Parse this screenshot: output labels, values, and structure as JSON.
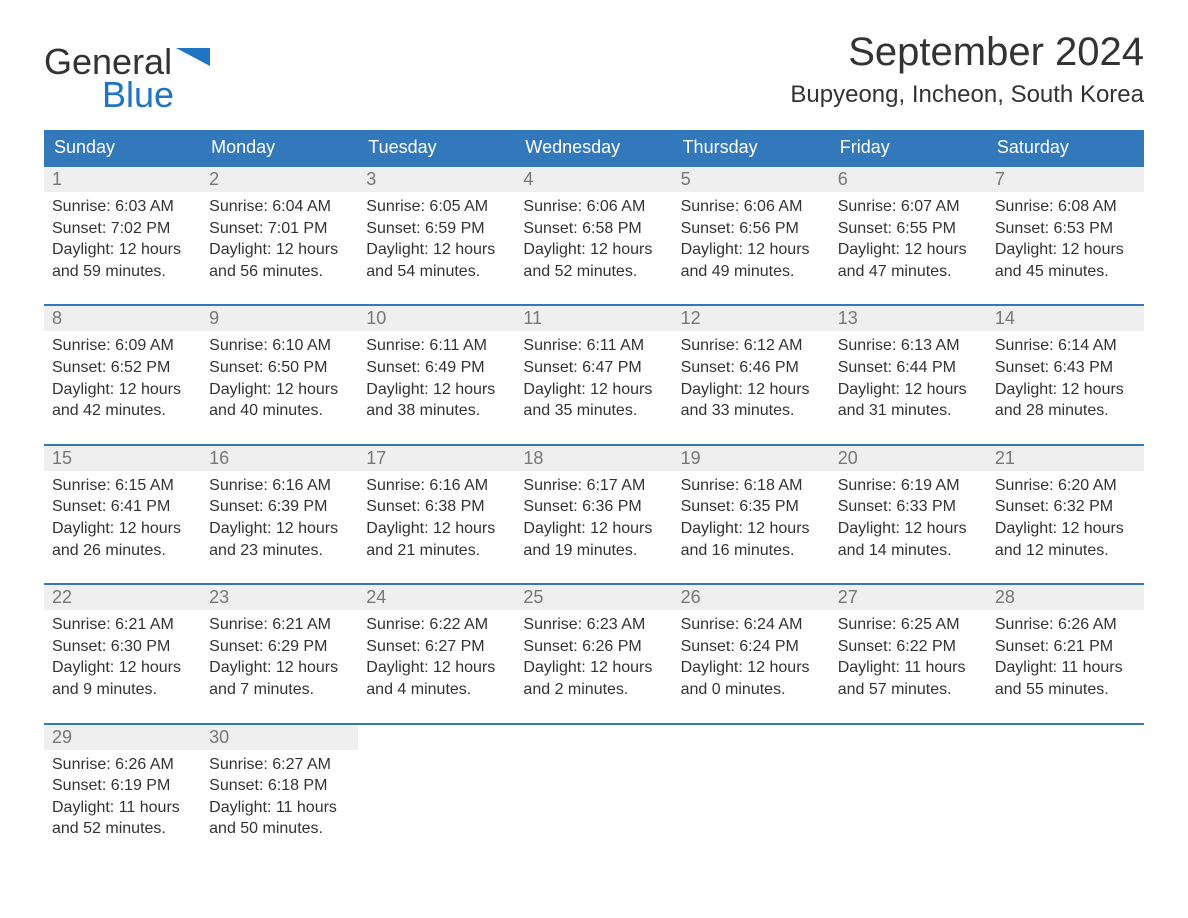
{
  "logo": {
    "word1": "General",
    "word2": "Blue"
  },
  "title": "September 2024",
  "location": "Bupyeong, Incheon, South Korea",
  "colors": {
    "header_bg": "#3478bc",
    "header_text": "#ffffff",
    "daynum_bg": "#efefef",
    "daynum_text": "#777777",
    "body_text": "#333333",
    "logo_blue": "#1f74c4",
    "week_border": "#3478bc",
    "page_bg": "#ffffff"
  },
  "typography": {
    "title_fontsize": 40,
    "location_fontsize": 24,
    "dow_fontsize": 18,
    "daynum_fontsize": 18,
    "body_fontsize": 16,
    "logo_fontsize": 36
  },
  "days_of_week": [
    "Sunday",
    "Monday",
    "Tuesday",
    "Wednesday",
    "Thursday",
    "Friday",
    "Saturday"
  ],
  "weeks": [
    [
      {
        "n": "1",
        "sr": "Sunrise: 6:03 AM",
        "ss": "Sunset: 7:02 PM",
        "d1": "Daylight: 12 hours",
        "d2": "and 59 minutes."
      },
      {
        "n": "2",
        "sr": "Sunrise: 6:04 AM",
        "ss": "Sunset: 7:01 PM",
        "d1": "Daylight: 12 hours",
        "d2": "and 56 minutes."
      },
      {
        "n": "3",
        "sr": "Sunrise: 6:05 AM",
        "ss": "Sunset: 6:59 PM",
        "d1": "Daylight: 12 hours",
        "d2": "and 54 minutes."
      },
      {
        "n": "4",
        "sr": "Sunrise: 6:06 AM",
        "ss": "Sunset: 6:58 PM",
        "d1": "Daylight: 12 hours",
        "d2": "and 52 minutes."
      },
      {
        "n": "5",
        "sr": "Sunrise: 6:06 AM",
        "ss": "Sunset: 6:56 PM",
        "d1": "Daylight: 12 hours",
        "d2": "and 49 minutes."
      },
      {
        "n": "6",
        "sr": "Sunrise: 6:07 AM",
        "ss": "Sunset: 6:55 PM",
        "d1": "Daylight: 12 hours",
        "d2": "and 47 minutes."
      },
      {
        "n": "7",
        "sr": "Sunrise: 6:08 AM",
        "ss": "Sunset: 6:53 PM",
        "d1": "Daylight: 12 hours",
        "d2": "and 45 minutes."
      }
    ],
    [
      {
        "n": "8",
        "sr": "Sunrise: 6:09 AM",
        "ss": "Sunset: 6:52 PM",
        "d1": "Daylight: 12 hours",
        "d2": "and 42 minutes."
      },
      {
        "n": "9",
        "sr": "Sunrise: 6:10 AM",
        "ss": "Sunset: 6:50 PM",
        "d1": "Daylight: 12 hours",
        "d2": "and 40 minutes."
      },
      {
        "n": "10",
        "sr": "Sunrise: 6:11 AM",
        "ss": "Sunset: 6:49 PM",
        "d1": "Daylight: 12 hours",
        "d2": "and 38 minutes."
      },
      {
        "n": "11",
        "sr": "Sunrise: 6:11 AM",
        "ss": "Sunset: 6:47 PM",
        "d1": "Daylight: 12 hours",
        "d2": "and 35 minutes."
      },
      {
        "n": "12",
        "sr": "Sunrise: 6:12 AM",
        "ss": "Sunset: 6:46 PM",
        "d1": "Daylight: 12 hours",
        "d2": "and 33 minutes."
      },
      {
        "n": "13",
        "sr": "Sunrise: 6:13 AM",
        "ss": "Sunset: 6:44 PM",
        "d1": "Daylight: 12 hours",
        "d2": "and 31 minutes."
      },
      {
        "n": "14",
        "sr": "Sunrise: 6:14 AM",
        "ss": "Sunset: 6:43 PM",
        "d1": "Daylight: 12 hours",
        "d2": "and 28 minutes."
      }
    ],
    [
      {
        "n": "15",
        "sr": "Sunrise: 6:15 AM",
        "ss": "Sunset: 6:41 PM",
        "d1": "Daylight: 12 hours",
        "d2": "and 26 minutes."
      },
      {
        "n": "16",
        "sr": "Sunrise: 6:16 AM",
        "ss": "Sunset: 6:39 PM",
        "d1": "Daylight: 12 hours",
        "d2": "and 23 minutes."
      },
      {
        "n": "17",
        "sr": "Sunrise: 6:16 AM",
        "ss": "Sunset: 6:38 PM",
        "d1": "Daylight: 12 hours",
        "d2": "and 21 minutes."
      },
      {
        "n": "18",
        "sr": "Sunrise: 6:17 AM",
        "ss": "Sunset: 6:36 PM",
        "d1": "Daylight: 12 hours",
        "d2": "and 19 minutes."
      },
      {
        "n": "19",
        "sr": "Sunrise: 6:18 AM",
        "ss": "Sunset: 6:35 PM",
        "d1": "Daylight: 12 hours",
        "d2": "and 16 minutes."
      },
      {
        "n": "20",
        "sr": "Sunrise: 6:19 AM",
        "ss": "Sunset: 6:33 PM",
        "d1": "Daylight: 12 hours",
        "d2": "and 14 minutes."
      },
      {
        "n": "21",
        "sr": "Sunrise: 6:20 AM",
        "ss": "Sunset: 6:32 PM",
        "d1": "Daylight: 12 hours",
        "d2": "and 12 minutes."
      }
    ],
    [
      {
        "n": "22",
        "sr": "Sunrise: 6:21 AM",
        "ss": "Sunset: 6:30 PM",
        "d1": "Daylight: 12 hours",
        "d2": "and 9 minutes."
      },
      {
        "n": "23",
        "sr": "Sunrise: 6:21 AM",
        "ss": "Sunset: 6:29 PM",
        "d1": "Daylight: 12 hours",
        "d2": "and 7 minutes."
      },
      {
        "n": "24",
        "sr": "Sunrise: 6:22 AM",
        "ss": "Sunset: 6:27 PM",
        "d1": "Daylight: 12 hours",
        "d2": "and 4 minutes."
      },
      {
        "n": "25",
        "sr": "Sunrise: 6:23 AM",
        "ss": "Sunset: 6:26 PM",
        "d1": "Daylight: 12 hours",
        "d2": "and 2 minutes."
      },
      {
        "n": "26",
        "sr": "Sunrise: 6:24 AM",
        "ss": "Sunset: 6:24 PM",
        "d1": "Daylight: 12 hours",
        "d2": "and 0 minutes."
      },
      {
        "n": "27",
        "sr": "Sunrise: 6:25 AM",
        "ss": "Sunset: 6:22 PM",
        "d1": "Daylight: 11 hours",
        "d2": "and 57 minutes."
      },
      {
        "n": "28",
        "sr": "Sunrise: 6:26 AM",
        "ss": "Sunset: 6:21 PM",
        "d1": "Daylight: 11 hours",
        "d2": "and 55 minutes."
      }
    ],
    [
      {
        "n": "29",
        "sr": "Sunrise: 6:26 AM",
        "ss": "Sunset: 6:19 PM",
        "d1": "Daylight: 11 hours",
        "d2": "and 52 minutes."
      },
      {
        "n": "30",
        "sr": "Sunrise: 6:27 AM",
        "ss": "Sunset: 6:18 PM",
        "d1": "Daylight: 11 hours",
        "d2": "and 50 minutes."
      },
      {
        "empty": true
      },
      {
        "empty": true
      },
      {
        "empty": true
      },
      {
        "empty": true
      },
      {
        "empty": true
      }
    ]
  ]
}
